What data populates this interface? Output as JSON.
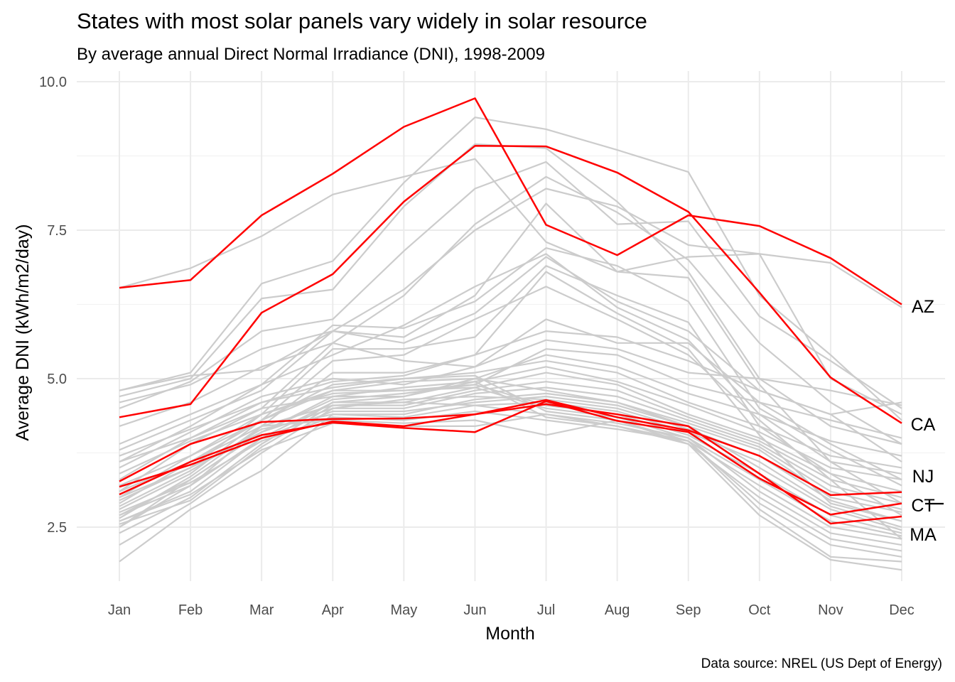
{
  "chart_data": {
    "type": "line",
    "title": "States with most solar panels vary widely in solar resource",
    "subtitle": "By average annual Direct Normal Irradiance (DNI), 1998-2009",
    "xlabel": "Month",
    "ylabel": "Average DNI (kWh/m2/day)",
    "caption": "Data source: NREL (US Dept of Energy)",
    "categories": [
      "Jan",
      "Feb",
      "Mar",
      "Apr",
      "May",
      "Jun",
      "Jul",
      "Aug",
      "Sep",
      "Oct",
      "Nov",
      "Dec"
    ],
    "y_ticks": [
      "2.5",
      "5.0",
      "7.5",
      "10.0"
    ],
    "ylim": [
      1.6,
      10.3
    ],
    "grid": true,
    "colors": {
      "highlight": "#ff0000",
      "other": "#cccccc",
      "grid": "#ebebeb"
    },
    "highlighted_series": [
      {
        "label": "AZ",
        "values": [
          6.53,
          6.66,
          7.75,
          8.45,
          9.24,
          9.72,
          7.59,
          7.08,
          7.75,
          7.57,
          7.03,
          6.25
        ]
      },
      {
        "label": "CA",
        "values": [
          4.35,
          4.57,
          6.11,
          6.76,
          7.98,
          8.92,
          8.91,
          8.47,
          7.81,
          6.45,
          5.02,
          4.25
        ]
      },
      {
        "label": "NJ",
        "values": [
          3.27,
          3.9,
          4.27,
          4.32,
          4.33,
          4.4,
          4.64,
          4.35,
          4.13,
          3.7,
          3.04,
          3.09
        ]
      },
      {
        "label": "CT",
        "values": [
          3.05,
          3.6,
          4.05,
          4.26,
          4.17,
          4.1,
          4.62,
          4.29,
          4.1,
          3.32,
          2.71,
          2.9
        ]
      },
      {
        "label": "MA",
        "values": [
          3.18,
          3.55,
          4.0,
          4.28,
          4.2,
          4.4,
          4.57,
          4.4,
          4.2,
          3.4,
          2.56,
          2.68
        ]
      }
    ],
    "background_series": [
      {
        "values": [
          6.53,
          6.86,
          7.4,
          8.1,
          8.4,
          8.7,
          7.3,
          6.8,
          7.05,
          7.1,
          6.95,
          6.2
        ]
      },
      {
        "values": [
          4.8,
          5.1,
          6.6,
          6.98,
          8.3,
          9.4,
          9.2,
          8.85,
          8.48,
          6.4,
          5.4,
          4.3
        ]
      },
      {
        "values": [
          4.7,
          5.0,
          6.35,
          6.5,
          7.9,
          8.95,
          8.88,
          7.98,
          6.8,
          5.0,
          4.2,
          3.9
        ]
      },
      {
        "values": [
          4.5,
          4.95,
          5.8,
          6.0,
          7.15,
          8.2,
          8.65,
          7.6,
          7.65,
          6.05,
          5.3,
          4.5
        ]
      },
      {
        "values": [
          4.6,
          4.9,
          5.5,
          5.8,
          6.5,
          7.5,
          8.2,
          7.9,
          7.25,
          7.1,
          5.0,
          4.4
        ]
      },
      {
        "values": [
          4.2,
          4.6,
          5.2,
          5.6,
          6.4,
          7.6,
          8.4,
          7.8,
          7.0,
          5.6,
          4.6,
          3.9
        ]
      },
      {
        "values": [
          3.8,
          4.3,
          4.8,
          5.8,
          5.7,
          6.4,
          7.95,
          6.8,
          6.7,
          4.9,
          3.6,
          3.4
        ]
      },
      {
        "values": [
          3.6,
          4.2,
          4.9,
          5.9,
          5.85,
          6.3,
          7.2,
          6.9,
          6.3,
          4.5,
          3.8,
          3.2
        ]
      },
      {
        "values": [
          4.8,
          5.05,
          5.15,
          5.8,
          5.6,
          6.1,
          7.05,
          6.3,
          5.8,
          4.8,
          4.4,
          3.6
        ]
      },
      {
        "values": [
          3.9,
          4.4,
          4.9,
          5.4,
          5.9,
          6.55,
          7.1,
          6.2,
          5.65,
          4.4,
          3.6,
          2.9
        ]
      },
      {
        "values": [
          3.0,
          3.5,
          4.4,
          5.5,
          5.5,
          5.7,
          6.9,
          6.4,
          5.95,
          4.2,
          3.4,
          2.7
        ]
      },
      {
        "values": [
          2.5,
          3.2,
          4.2,
          5.1,
          5.1,
          5.4,
          6.8,
          6.1,
          5.5,
          4.05,
          2.9,
          2.6
        ]
      },
      {
        "values": [
          2.8,
          3.4,
          4.3,
          5.3,
          5.4,
          6.0,
          6.55,
          6.0,
          5.4,
          4.3,
          3.3,
          2.3
        ]
      },
      {
        "values": [
          3.1,
          3.9,
          4.5,
          5.6,
          5.3,
          5.2,
          6.0,
          5.6,
          5.6,
          4.6,
          3.9,
          3.3
        ]
      },
      {
        "values": [
          3.3,
          4.0,
          4.6,
          4.95,
          5.05,
          5.4,
          5.8,
          5.7,
          5.3,
          4.8,
          4.4,
          4.6
        ]
      },
      {
        "values": [
          3.5,
          4.1,
          4.7,
          5.0,
          4.9,
          5.2,
          5.65,
          5.5,
          5.1,
          5.0,
          4.8,
          4.55
        ]
      },
      {
        "values": [
          3.0,
          3.7,
          4.4,
          4.8,
          4.8,
          4.9,
          5.5,
          5.4,
          4.9,
          4.6,
          4.3,
          4.0
        ]
      },
      {
        "values": [
          2.7,
          3.3,
          4.1,
          4.7,
          4.7,
          5.0,
          5.4,
          5.2,
          4.75,
          4.4,
          3.95,
          3.7
        ]
      },
      {
        "values": [
          2.9,
          3.6,
          4.3,
          4.9,
          5.0,
          5.1,
          5.3,
          5.1,
          4.6,
          4.2,
          3.7,
          3.5
        ]
      },
      {
        "values": [
          2.6,
          3.1,
          4.0,
          4.6,
          4.7,
          4.95,
          5.2,
          4.95,
          4.55,
          4.1,
          3.5,
          3.3
        ]
      },
      {
        "values": [
          2.4,
          3.0,
          3.9,
          4.6,
          4.6,
          4.85,
          5.1,
          4.9,
          4.4,
          4.0,
          3.4,
          3.1
        ]
      },
      {
        "values": [
          2.55,
          2.95,
          3.85,
          4.55,
          4.55,
          4.8,
          4.95,
          4.8,
          4.35,
          3.95,
          3.3,
          3.0
        ]
      },
      {
        "values": [
          2.2,
          2.9,
          3.75,
          4.5,
          4.5,
          4.75,
          4.85,
          4.7,
          4.3,
          3.9,
          3.2,
          2.9
        ]
      },
      {
        "values": [
          1.92,
          2.8,
          3.45,
          4.4,
          4.4,
          4.65,
          4.75,
          4.6,
          4.25,
          3.85,
          3.1,
          2.8
        ]
      },
      {
        "values": [
          2.7,
          3.2,
          4.0,
          4.45,
          4.45,
          4.6,
          4.7,
          4.55,
          4.2,
          3.8,
          3.0,
          2.75
        ]
      },
      {
        "values": [
          2.5,
          3.3,
          4.1,
          4.5,
          4.65,
          4.7,
          4.65,
          4.5,
          4.15,
          3.7,
          2.95,
          2.6
        ]
      },
      {
        "values": [
          2.65,
          3.35,
          4.2,
          4.55,
          4.6,
          4.55,
          4.6,
          4.45,
          4.1,
          3.6,
          2.85,
          2.5
        ]
      },
      {
        "values": [
          3.2,
          3.7,
          4.3,
          4.8,
          4.95,
          5.0,
          4.8,
          4.6,
          4.2,
          3.5,
          2.8,
          2.45
        ]
      },
      {
        "values": [
          2.95,
          3.5,
          4.1,
          4.65,
          4.75,
          4.9,
          4.55,
          4.4,
          4.05,
          3.4,
          2.7,
          2.4
        ]
      },
      {
        "values": [
          3.4,
          3.95,
          4.4,
          4.75,
          4.8,
          4.85,
          4.5,
          4.35,
          4.0,
          3.3,
          2.6,
          2.35
        ]
      },
      {
        "values": [
          3.7,
          4.15,
          4.6,
          4.85,
          5.0,
          5.05,
          4.45,
          4.3,
          3.95,
          3.2,
          2.5,
          2.3
        ]
      },
      {
        "values": [
          2.85,
          3.45,
          4.15,
          4.4,
          4.35,
          4.55,
          4.4,
          4.25,
          4.0,
          3.1,
          2.4,
          2.2
        ]
      },
      {
        "values": [
          3.6,
          4.0,
          4.5,
          4.7,
          4.85,
          4.95,
          4.35,
          4.2,
          3.9,
          3.0,
          2.3,
          2.1
        ]
      },
      {
        "values": [
          2.75,
          3.25,
          3.95,
          4.35,
          4.3,
          4.45,
          4.3,
          4.15,
          3.95,
          2.9,
          2.2,
          2.0
        ]
      },
      {
        "values": [
          3.1,
          3.6,
          4.2,
          4.3,
          4.25,
          4.3,
          4.05,
          4.3,
          3.9,
          2.7,
          1.95,
          1.78
        ]
      },
      {
        "values": [
          2.6,
          3.05,
          3.8,
          4.25,
          4.2,
          4.2,
          4.4,
          4.2,
          3.95,
          2.8,
          2.0,
          1.92
        ]
      }
    ]
  }
}
